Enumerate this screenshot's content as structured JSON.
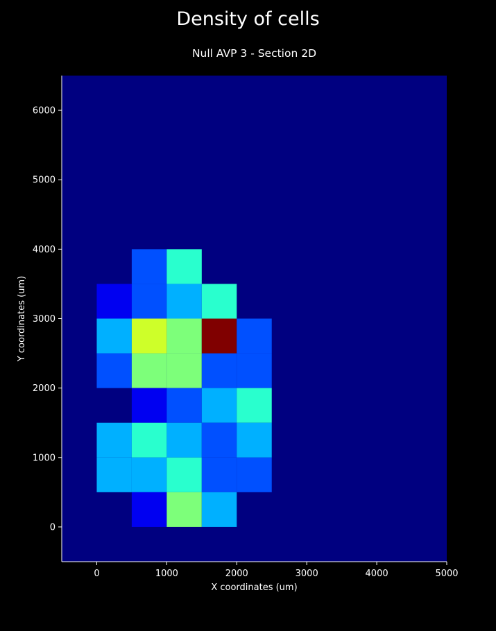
{
  "figure": {
    "title": "Density of cells",
    "subtitle": "Null AVP 3 - Section 2D"
  },
  "colors": {
    "background": "#000000",
    "axes_background": "#000080",
    "axis_line": "#ffffff",
    "text": "#ffffff"
  },
  "chart_data": {
    "type": "heatmap",
    "title": "Null AVP 3 - Section 2D",
    "xlabel": "X coordinates (um)",
    "ylabel": "Y coordinates (um)",
    "xlim": [
      -500,
      5000
    ],
    "ylim": [
      -500,
      6500
    ],
    "xticks": [
      0,
      1000,
      2000,
      3000,
      4000,
      5000
    ],
    "yticks": [
      0,
      1000,
      2000,
      3000,
      4000,
      5000,
      6000
    ],
    "xtick_labels": [
      "0",
      "1000",
      "2000",
      "3000",
      "4000",
      "5000"
    ],
    "ytick_labels": [
      "0",
      "1000",
      "2000",
      "3000",
      "4000",
      "5000",
      "6000"
    ],
    "grid": false,
    "colormap": "jet",
    "bin_size": 500,
    "cells": [
      {
        "x": 500,
        "y": 3500,
        "level": 0.3,
        "color": "#0050ff"
      },
      {
        "x": 1000,
        "y": 3500,
        "level": 0.5,
        "color": "#29ffce"
      },
      {
        "x": 0,
        "y": 3000,
        "level": 0.2,
        "color": "#0000f1"
      },
      {
        "x": 500,
        "y": 3000,
        "level": 0.3,
        "color": "#0050ff"
      },
      {
        "x": 1000,
        "y": 3000,
        "level": 0.4,
        "color": "#00b0ff"
      },
      {
        "x": 1500,
        "y": 3000,
        "level": 0.5,
        "color": "#29ffce"
      },
      {
        "x": 0,
        "y": 2500,
        "level": 0.4,
        "color": "#00b0ff"
      },
      {
        "x": 500,
        "y": 2500,
        "level": 0.7,
        "color": "#ceff29"
      },
      {
        "x": 1000,
        "y": 2500,
        "level": 0.6,
        "color": "#7dff7a"
      },
      {
        "x": 1500,
        "y": 2500,
        "level": 1.0,
        "color": "#800000"
      },
      {
        "x": 2000,
        "y": 2500,
        "level": 0.3,
        "color": "#0050ff"
      },
      {
        "x": 0,
        "y": 2000,
        "level": 0.3,
        "color": "#0050ff"
      },
      {
        "x": 500,
        "y": 2000,
        "level": 0.6,
        "color": "#7dff7a"
      },
      {
        "x": 1000,
        "y": 2000,
        "level": 0.6,
        "color": "#7dff7a"
      },
      {
        "x": 1500,
        "y": 2000,
        "level": 0.3,
        "color": "#0050ff"
      },
      {
        "x": 2000,
        "y": 2000,
        "level": 0.3,
        "color": "#0050ff"
      },
      {
        "x": 500,
        "y": 1500,
        "level": 0.2,
        "color": "#0000f1"
      },
      {
        "x": 1000,
        "y": 1500,
        "level": 0.3,
        "color": "#0050ff"
      },
      {
        "x": 1500,
        "y": 1500,
        "level": 0.4,
        "color": "#00b0ff"
      },
      {
        "x": 2000,
        "y": 1500,
        "level": 0.5,
        "color": "#29ffce"
      },
      {
        "x": 0,
        "y": 1000,
        "level": 0.4,
        "color": "#00b0ff"
      },
      {
        "x": 500,
        "y": 1000,
        "level": 0.5,
        "color": "#29ffce"
      },
      {
        "x": 1000,
        "y": 1000,
        "level": 0.4,
        "color": "#00b0ff"
      },
      {
        "x": 1500,
        "y": 1000,
        "level": 0.3,
        "color": "#0050ff"
      },
      {
        "x": 2000,
        "y": 1000,
        "level": 0.4,
        "color": "#00b0ff"
      },
      {
        "x": 0,
        "y": 500,
        "level": 0.4,
        "color": "#00b0ff"
      },
      {
        "x": 500,
        "y": 500,
        "level": 0.4,
        "color": "#00b0ff"
      },
      {
        "x": 1000,
        "y": 500,
        "level": 0.5,
        "color": "#29ffce"
      },
      {
        "x": 1500,
        "y": 500,
        "level": 0.3,
        "color": "#0050ff"
      },
      {
        "x": 2000,
        "y": 500,
        "level": 0.3,
        "color": "#0050ff"
      },
      {
        "x": 500,
        "y": 0,
        "level": 0.2,
        "color": "#0000f1"
      },
      {
        "x": 1000,
        "y": 0,
        "level": 0.6,
        "color": "#7dff7a"
      },
      {
        "x": 1500,
        "y": 0,
        "level": 0.4,
        "color": "#00b0ff"
      }
    ]
  }
}
